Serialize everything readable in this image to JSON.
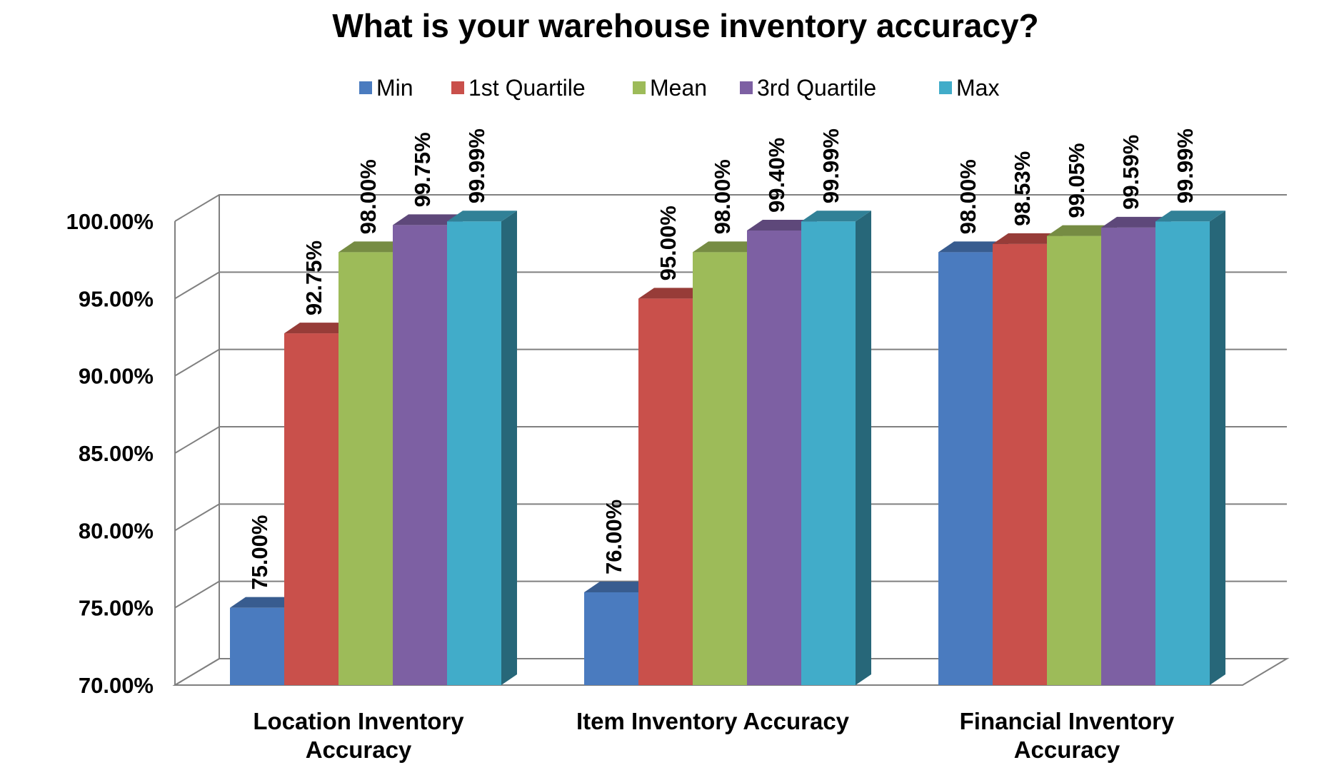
{
  "chart_data": {
    "type": "bar",
    "title": "What is your warehouse inventory accuracy?",
    "categories": [
      [
        "Location Inventory",
        "Accuracy"
      ],
      [
        "Item Inventory Accuracy"
      ],
      [
        "Financial Inventory",
        "Accuracy"
      ]
    ],
    "series": [
      {
        "name": "Min",
        "color": "#4a7bbf",
        "values": [
          75.0,
          76.0,
          98.0
        ],
        "labels": [
          "75.00%",
          "76.00%",
          "98.00%"
        ]
      },
      {
        "name": "1st Quartile",
        "color": "#c9504b",
        "values": [
          92.75,
          95.0,
          98.53
        ],
        "labels": [
          "92.75%",
          "95.00%",
          "98.53%"
        ]
      },
      {
        "name": "Mean",
        "color": "#9dbb59",
        "values": [
          98.0,
          98.0,
          99.05
        ],
        "labels": [
          "98.00%",
          "98.00%",
          "99.05%"
        ]
      },
      {
        "name": "3rd Quartile",
        "color": "#7d60a3",
        "values": [
          99.75,
          99.4,
          99.59
        ],
        "labels": [
          "99.75%",
          "99.40%",
          "99.59%"
        ]
      },
      {
        "name": "Max",
        "color": "#41acc9",
        "values": [
          99.99,
          99.99,
          99.99
        ],
        "labels": [
          "99.99%",
          "99.99%",
          "99.99%"
        ]
      }
    ],
    "yticks": [
      "70.00%",
      "75.00%",
      "80.00%",
      "85.00%",
      "90.00%",
      "95.00%",
      "100.00%"
    ],
    "ylim": [
      70,
      100
    ],
    "legend_position": "top",
    "grid": true,
    "three_d": true
  }
}
